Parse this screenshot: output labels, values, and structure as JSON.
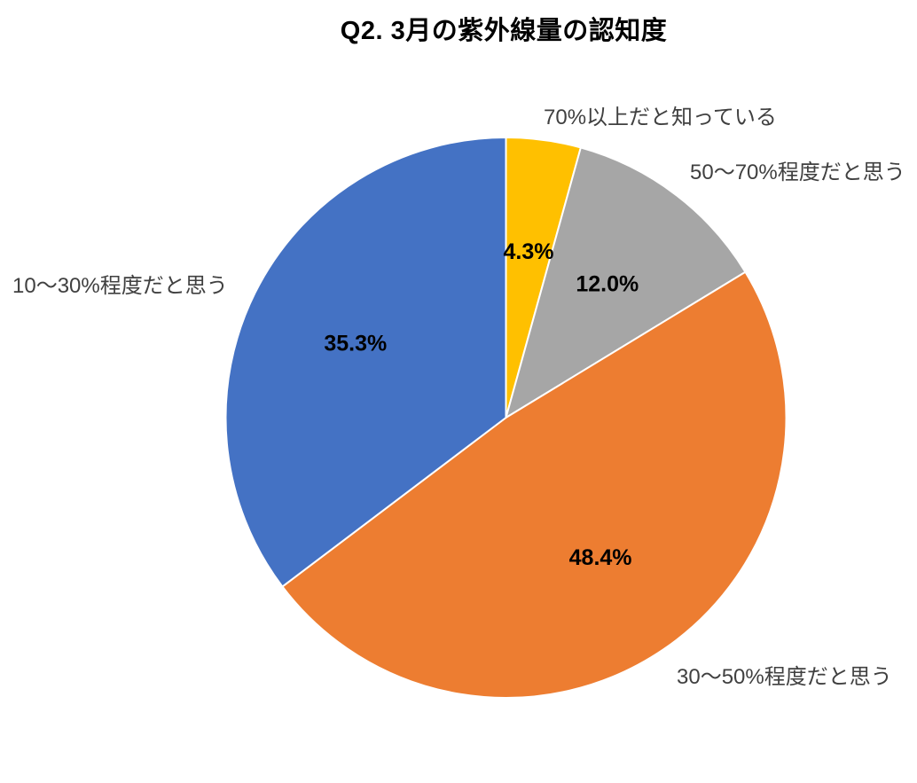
{
  "chart_data": {
    "type": "pie",
    "title": "Q2. 3月の紫外線量の認知度",
    "start_angle": "top",
    "direction": "clockwise",
    "legend": "none",
    "background": "#ffffff",
    "slice_border_color": "#ffffff",
    "label_style": "category names outside, bold percent values inside at mid-angle",
    "slices": [
      {
        "label": "70%以上だと知っている",
        "value": 4.3,
        "percent_text": "4.3%",
        "color": "#FFC000"
      },
      {
        "label": "50〜70%程度だと思う",
        "value": 12.0,
        "percent_text": "12.0%",
        "color": "#A6A6A6"
      },
      {
        "label": "30〜50%程度だと思う",
        "value": 48.4,
        "percent_text": "48.4%",
        "color": "#ED7D31"
      },
      {
        "label": "10〜30%程度だと思う",
        "value": 35.3,
        "percent_text": "35.3%",
        "color": "#4472C4"
      }
    ]
  }
}
